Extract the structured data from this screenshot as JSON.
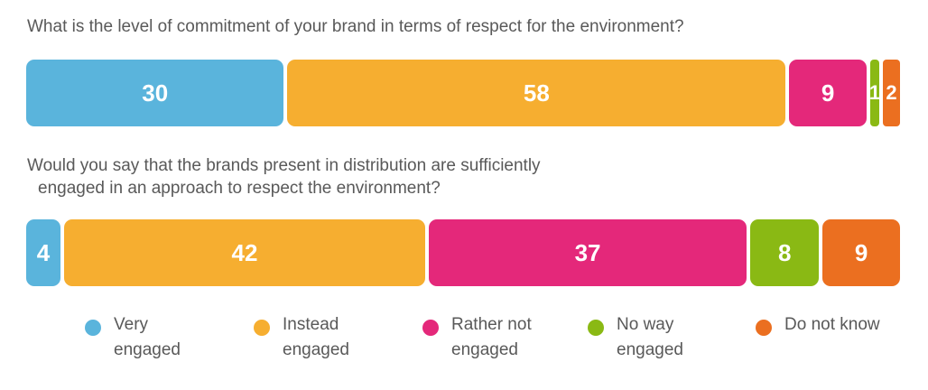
{
  "chart_data": [
    {
      "type": "bar",
      "orientation": "horizontal-stacked",
      "title": "What is the level of commitment of your brand in terms of respect for the environment?",
      "categories": [
        "Very engaged",
        "Instead engaged",
        "Rather not engaged",
        "No way engaged",
        "Do not know"
      ],
      "values": [
        30,
        58,
        9,
        1,
        2
      ],
      "labels": [
        "30",
        "58",
        "9",
        "1",
        "2"
      ],
      "legend_position": "bottom",
      "grid": false
    },
    {
      "type": "bar",
      "orientation": "horizontal-stacked",
      "title_line1": "Would you say that the brands present in distribution are sufficiently",
      "title_line2": "engaged in an approach to respect the environment?",
      "categories": [
        "Very engaged",
        "Instead engaged",
        "Rather not engaged",
        "No way engaged",
        "Do not know"
      ],
      "values": [
        4,
        42,
        37,
        8,
        9
      ],
      "labels": [
        "4",
        "42",
        "37",
        "8",
        "9"
      ],
      "legend_position": "bottom",
      "grid": false
    }
  ],
  "legend": [
    {
      "label": "Very\nengaged",
      "color": "#5ab4dc"
    },
    {
      "label": "Instead\nengaged",
      "color": "#f6ae30"
    },
    {
      "label": "Rather not\nengaged",
      "color": "#e4287a"
    },
    {
      "label": "No way\nengaged",
      "color": "#8ab914"
    },
    {
      "label": "Do not know",
      "color": "#eb6f20"
    }
  ]
}
